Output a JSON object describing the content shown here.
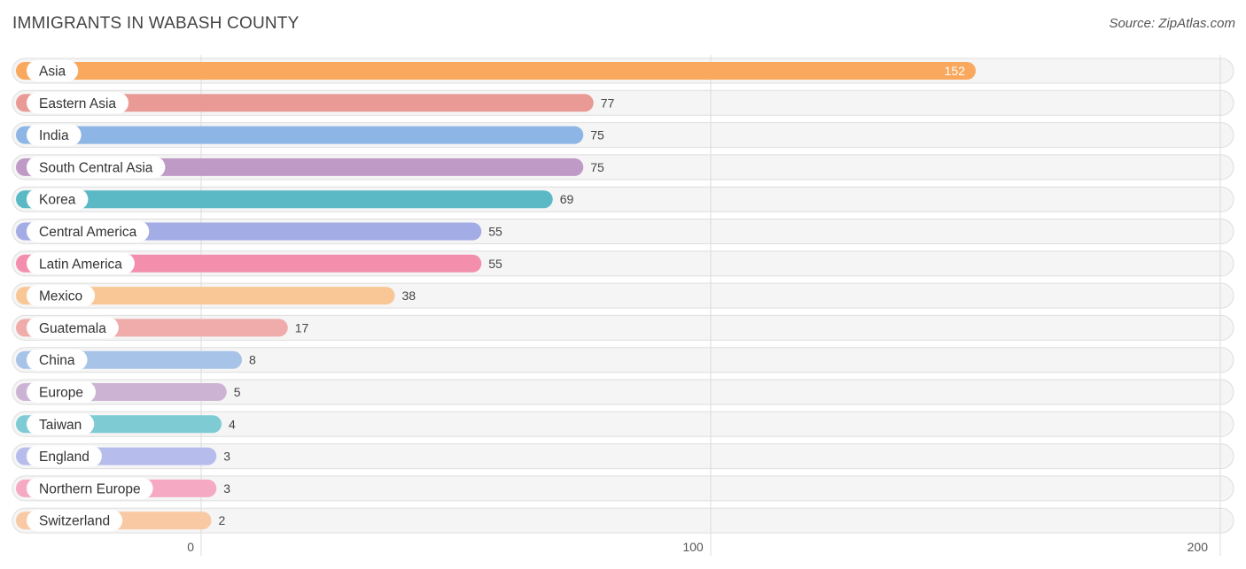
{
  "chart_data": {
    "type": "bar",
    "orientation": "horizontal",
    "title": "IMMIGRANTS IN WABASH COUNTY",
    "source": "Source: ZipAtlas.com",
    "categories": [
      "Asia",
      "Eastern Asia",
      "India",
      "South Central Asia",
      "Korea",
      "Central America",
      "Latin America",
      "Mexico",
      "Guatemala",
      "China",
      "Europe",
      "Taiwan",
      "England",
      "Northern Europe",
      "Switzerland"
    ],
    "values": [
      152,
      77,
      75,
      75,
      69,
      55,
      55,
      38,
      17,
      8,
      5,
      4,
      3,
      3,
      2
    ],
    "value_labels": [
      "152",
      "77",
      "75",
      "75",
      "69",
      "55",
      "55",
      "38",
      "17",
      "8",
      "5",
      "4",
      "3",
      "3",
      "2"
    ],
    "colors": [
      "#f9a85d",
      "#e99a94",
      "#8db5e5",
      "#c09ac6",
      "#5bb9c6",
      "#a4ace6",
      "#f38ead",
      "#f9c796",
      "#efacaa",
      "#a8c3e8",
      "#cdb3d3",
      "#7ecbd3",
      "#b6bdec",
      "#f5a9c3",
      "#f9c9a3"
    ],
    "xlim": [
      0,
      200
    ],
    "xticks": [
      0,
      100,
      200
    ],
    "xtick_labels": [
      "0",
      "100",
      "200"
    ],
    "grid": true
  }
}
